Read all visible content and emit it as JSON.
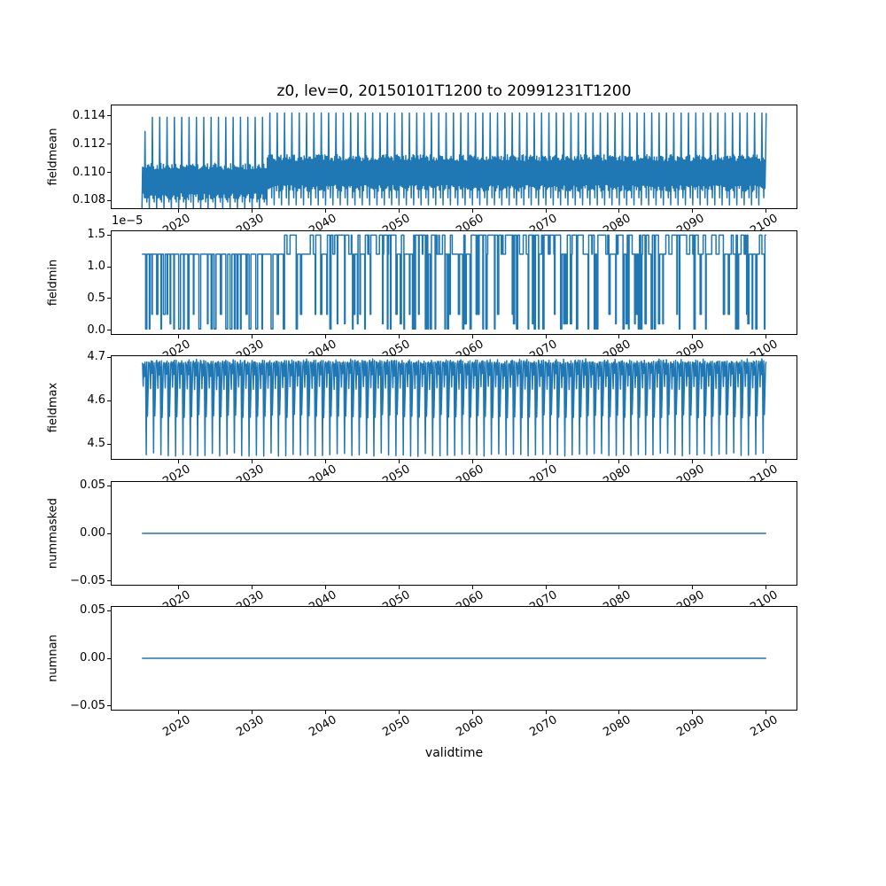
{
  "figure": {
    "title": "z0, lev=0, 20150101T1200 to 20991231T1200",
    "xlabel": "validtime",
    "line_color": "#1f77b4",
    "background": "#ffffff",
    "spine_color": "#000000",
    "xlim": [
      2010.75,
      2104.25
    ],
    "x_ticks": [
      2020,
      2030,
      2040,
      2050,
      2060,
      2070,
      2080,
      2090,
      2100
    ],
    "x_tick_labels": [
      "2020",
      "2030",
      "2040",
      "2050",
      "2060",
      "2070",
      "2080",
      "2090",
      "2100"
    ]
  },
  "chart_data": [
    {
      "type": "line",
      "name": "fieldmean",
      "ylabel": "fieldmean",
      "x_range": [
        2015,
        2100
      ],
      "ylim": [
        0.1074,
        0.1148
      ],
      "yticks": [
        0.108,
        0.11,
        0.112,
        0.114
      ],
      "ytick_labels": [
        "0.108",
        "0.110",
        "0.112",
        "0.114"
      ],
      "series_gen": {
        "kind": "seasonal_band",
        "samples_per_year": 12,
        "first_peak": 0.1129,
        "noise": 0.0005,
        "segments": [
          {
            "from": 2015,
            "to": 2032,
            "band": [
              0.1083,
              0.1104
            ],
            "peak": 0.1139,
            "trough": 0.1074,
            "trough2": 0.1079
          },
          {
            "from": 2032,
            "to": 2100,
            "band": [
              0.1089,
              0.111
            ],
            "peak": 0.1142,
            "trough": 0.1077,
            "trough2": 0.1082
          }
        ]
      }
    },
    {
      "type": "line",
      "name": "fieldmin",
      "ylabel": "fieldmin",
      "offset_text": "1e−5",
      "unit_scale": "1e-5",
      "x_range": [
        2015,
        2100
      ],
      "ylim": [
        -0.075,
        1.575
      ],
      "yticks": [
        0.0,
        0.5,
        1.0,
        1.5
      ],
      "ytick_labels": [
        "0.0",
        "0.5",
        "1.0",
        "1.5"
      ],
      "series_gen": {
        "kind": "square_wave",
        "segments": [
          {
            "from": 2015,
            "to": 2034,
            "top_levels": [
              [
                1.2,
                1.0
              ]
            ],
            "dip_levels": [
              [
                0.02,
                0.55
              ],
              [
                0.25,
                0.3
              ],
              [
                0.1,
                0.15
              ]
            ],
            "top_run": [
              3,
              8
            ],
            "dip_run": [
              1,
              3
            ],
            "dip_prob": 0.95
          },
          {
            "from": 2034,
            "to": 2100,
            "top_levels": [
              [
                1.5,
                0.6
              ],
              [
                1.2,
                0.4
              ]
            ],
            "dip_levels": [
              [
                0.02,
                0.5
              ],
              [
                0.25,
                0.35
              ],
              [
                0.1,
                0.15
              ]
            ],
            "top_run": [
              1,
              5
            ],
            "dip_run": [
              1,
              2
            ],
            "dip_prob": 0.35
          }
        ]
      }
    },
    {
      "type": "line",
      "name": "fieldmax",
      "ylabel": "fieldmax",
      "x_range": [
        2015,
        2100
      ],
      "ylim": [
        4.464,
        4.705
      ],
      "yticks": [
        4.5,
        4.6,
        4.7
      ],
      "ytick_labels": [
        "4.5",
        "4.6",
        "4.7"
      ],
      "series_gen": {
        "kind": "yearly_pattern",
        "samples_per_year": 12,
        "noise": 0.004,
        "pattern": [
          4.69,
          4.682,
          4.63,
          4.688,
          4.66,
          4.693,
          4.675,
          4.476,
          4.69,
          4.565,
          4.625,
          4.686
        ]
      }
    },
    {
      "type": "line",
      "name": "nummasked",
      "ylabel": "nummasked",
      "x_range": [
        2015,
        2100
      ],
      "ylim": [
        -0.055,
        0.055
      ],
      "yticks": [
        -0.05,
        0.0,
        0.05
      ],
      "ytick_labels": [
        "−0.05",
        "0.00",
        "0.05"
      ],
      "series_gen": {
        "kind": "constant",
        "value": 0.0
      }
    },
    {
      "type": "line",
      "name": "numnan",
      "ylabel": "numnan",
      "x_range": [
        2015,
        2100
      ],
      "ylim": [
        -0.055,
        0.055
      ],
      "yticks": [
        -0.05,
        0.0,
        0.05
      ],
      "ytick_labels": [
        "−0.05",
        "0.00",
        "0.05"
      ],
      "series_gen": {
        "kind": "constant",
        "value": 0.0
      }
    }
  ]
}
